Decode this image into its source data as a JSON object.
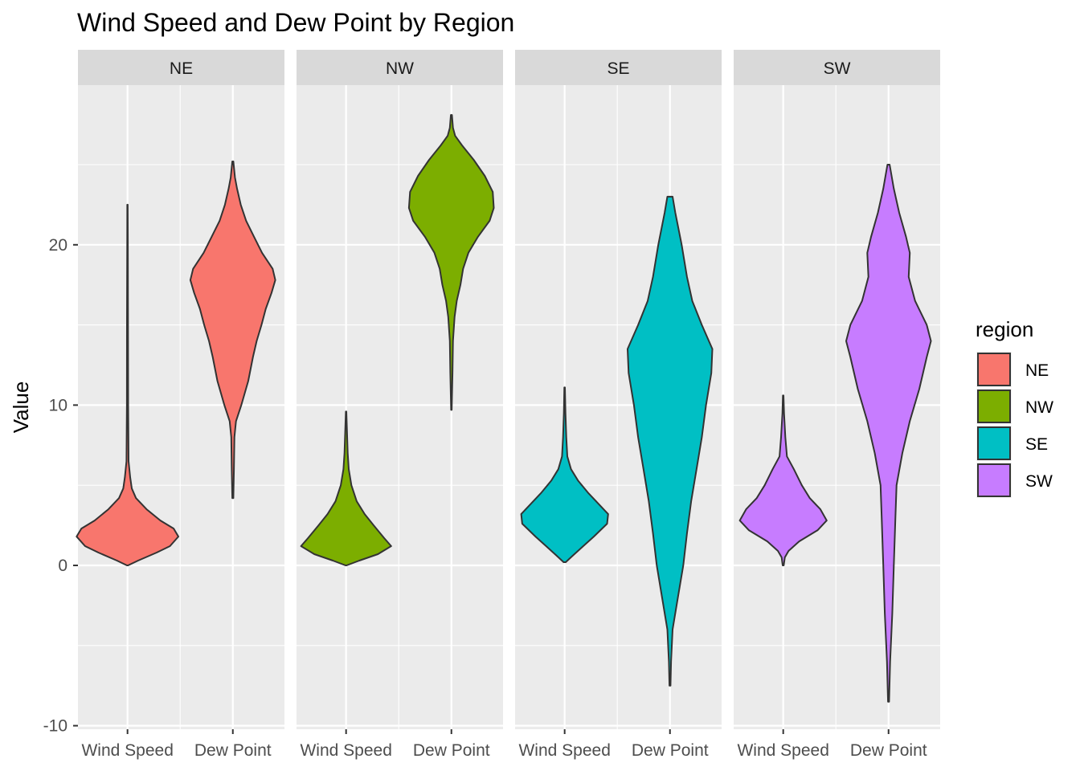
{
  "chart_data": {
    "type": "violin",
    "title": "Wind Speed and Dew Point by Region",
    "xlabel": "",
    "ylabel": "Value",
    "ylim": [
      -10,
      30
    ],
    "y_ticks": [
      -10,
      0,
      10,
      20
    ],
    "categories": [
      "Wind Speed",
      "Dew Point"
    ],
    "panels": [
      "NE",
      "NW",
      "SE",
      "SW"
    ],
    "legend": {
      "title": "region",
      "position": "right",
      "entries": [
        {
          "label": "NE",
          "color": "#F8766D"
        },
        {
          "label": "NW",
          "color": "#7CAE00"
        },
        {
          "label": "SE",
          "color": "#00BFC4"
        },
        {
          "label": "SW",
          "color": "#C77CFF"
        }
      ]
    },
    "grid": true,
    "series": [
      {
        "panel": "NE",
        "color": "#F8766D",
        "violins": [
          {
            "category": "Wind Speed",
            "profile": [
              [
                0,
                0.01
              ],
              [
                0.3,
                0.2
              ],
              [
                0.8,
                0.55
              ],
              [
                1.2,
                0.8
              ],
              [
                1.8,
                0.96
              ],
              [
                2.3,
                0.87
              ],
              [
                2.8,
                0.62
              ],
              [
                3.5,
                0.36
              ],
              [
                4.2,
                0.16
              ],
              [
                4.8,
                0.08
              ],
              [
                5.5,
                0.05
              ],
              [
                6.5,
                0.02
              ],
              [
                10,
                0.012
              ],
              [
                15,
                0.01
              ],
              [
                20,
                0.006
              ],
              [
                22.5,
                0.004
              ]
            ]
          },
          {
            "category": "Dew Point",
            "profile": [
              [
                4.2,
                0.01
              ],
              [
                6,
                0.02
              ],
              [
                8,
                0.03
              ],
              [
                9,
                0.06
              ],
              [
                10,
                0.16
              ],
              [
                11.5,
                0.29
              ],
              [
                13,
                0.38
              ],
              [
                14,
                0.45
              ],
              [
                15,
                0.54
              ],
              [
                16,
                0.62
              ],
              [
                17,
                0.73
              ],
              [
                17.8,
                0.8
              ],
              [
                18.5,
                0.75
              ],
              [
                19.5,
                0.55
              ],
              [
                20.5,
                0.4
              ],
              [
                21.5,
                0.25
              ],
              [
                22.5,
                0.15
              ],
              [
                23.5,
                0.08
              ],
              [
                24.2,
                0.04
              ],
              [
                25.2,
                0.01
              ]
            ]
          }
        ]
      },
      {
        "panel": "NW",
        "color": "#7CAE00",
        "violins": [
          {
            "category": "Wind Speed",
            "profile": [
              [
                0,
                0.01
              ],
              [
                0.3,
                0.25
              ],
              [
                0.7,
                0.6
              ],
              [
                1.2,
                0.85
              ],
              [
                1.7,
                0.72
              ],
              [
                2.5,
                0.52
              ],
              [
                3.2,
                0.35
              ],
              [
                4,
                0.2
              ],
              [
                5,
                0.1
              ],
              [
                6,
                0.05
              ],
              [
                7,
                0.03
              ],
              [
                9.6,
                0.005
              ]
            ]
          },
          {
            "category": "Dew Point",
            "profile": [
              [
                9.7,
                0.005
              ],
              [
                12,
                0.02
              ],
              [
                14,
                0.03
              ],
              [
                15.5,
                0.06
              ],
              [
                16.5,
                0.1
              ],
              [
                17.5,
                0.17
              ],
              [
                18.5,
                0.22
              ],
              [
                19.5,
                0.32
              ],
              [
                20.5,
                0.5
              ],
              [
                21.5,
                0.72
              ],
              [
                22.3,
                0.8
              ],
              [
                23.3,
                0.78
              ],
              [
                24.3,
                0.63
              ],
              [
                25.3,
                0.42
              ],
              [
                26.2,
                0.2
              ],
              [
                26.8,
                0.07
              ],
              [
                27.3,
                0.03
              ],
              [
                28.1,
                0.01
              ]
            ]
          }
        ]
      },
      {
        "panel": "SE",
        "color": "#00BFC4",
        "violins": [
          {
            "category": "Wind Speed",
            "profile": [
              [
                0.2,
                0.02
              ],
              [
                0.6,
                0.15
              ],
              [
                1.2,
                0.35
              ],
              [
                1.8,
                0.55
              ],
              [
                2.6,
                0.8
              ],
              [
                3.2,
                0.82
              ],
              [
                3.8,
                0.65
              ],
              [
                4.5,
                0.45
              ],
              [
                5.3,
                0.25
              ],
              [
                6,
                0.12
              ],
              [
                6.8,
                0.05
              ],
              [
                8,
                0.03
              ],
              [
                9.5,
                0.015
              ],
              [
                11.1,
                0.005
              ]
            ]
          },
          {
            "category": "Dew Point",
            "profile": [
              [
                -7.5,
                0.01
              ],
              [
                -6,
                0.02
              ],
              [
                -4,
                0.05
              ],
              [
                -2,
                0.15
              ],
              [
                0,
                0.25
              ],
              [
                2,
                0.32
              ],
              [
                4,
                0.4
              ],
              [
                6,
                0.5
              ],
              [
                8,
                0.6
              ],
              [
                10,
                0.68
              ],
              [
                12,
                0.78
              ],
              [
                13.5,
                0.8
              ],
              [
                15,
                0.6
              ],
              [
                16.5,
                0.42
              ],
              [
                18,
                0.32
              ],
              [
                20,
                0.22
              ],
              [
                22,
                0.1
              ],
              [
                23,
                0.05
              ]
            ]
          }
        ]
      },
      {
        "panel": "SW",
        "color": "#C77CFF",
        "violins": [
          {
            "category": "Wind Speed",
            "profile": [
              [
                0,
                0.01
              ],
              [
                0.5,
                0.03
              ],
              [
                0.9,
                0.1
              ],
              [
                1.5,
                0.3
              ],
              [
                2.2,
                0.65
              ],
              [
                2.8,
                0.82
              ],
              [
                3.5,
                0.7
              ],
              [
                4.2,
                0.5
              ],
              [
                5,
                0.35
              ],
              [
                6,
                0.2
              ],
              [
                6.8,
                0.07
              ],
              [
                8,
                0.04
              ],
              [
                9.5,
                0.015
              ],
              [
                10.6,
                0.005
              ]
            ]
          },
          {
            "category": "Dew Point",
            "profile": [
              [
                -8.5,
                0.01
              ],
              [
                -6,
                0.03
              ],
              [
                -3,
                0.07
              ],
              [
                0,
                0.1
              ],
              [
                3,
                0.13
              ],
              [
                5,
                0.15
              ],
              [
                7,
                0.26
              ],
              [
                9,
                0.4
              ],
              [
                11,
                0.58
              ],
              [
                13,
                0.72
              ],
              [
                14,
                0.8
              ],
              [
                15,
                0.72
              ],
              [
                16.5,
                0.5
              ],
              [
                18,
                0.38
              ],
              [
                19.5,
                0.4
              ],
              [
                20.5,
                0.33
              ],
              [
                22,
                0.2
              ],
              [
                23.5,
                0.1
              ],
              [
                25,
                0.02
              ]
            ]
          }
        ]
      }
    ]
  }
}
